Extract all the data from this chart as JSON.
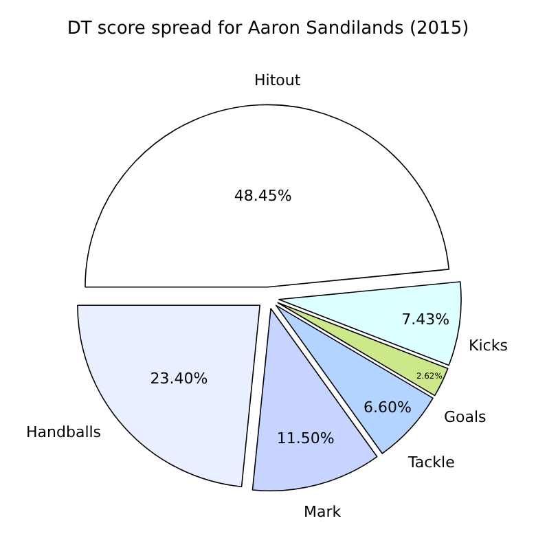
{
  "chart_data": {
    "type": "pie",
    "title": "DT score spread for Aaron Sandilands (2015)",
    "categories": [
      "Hitout",
      "Handballs",
      "Mark",
      "Tackle",
      "Goals",
      "Kicks"
    ],
    "values": [
      48.45,
      23.4,
      11.5,
      6.6,
      2.62,
      7.43
    ],
    "value_labels": [
      "48.45%",
      "23.40%",
      "11.50%",
      "6.60%",
      "2.62%",
      "7.43%"
    ],
    "colors": [
      "#ffffff",
      "#e8f0ff",
      "#c6d4ff",
      "#b3d4ff",
      "#cce88a",
      "#ddffff"
    ],
    "legend": false
  }
}
